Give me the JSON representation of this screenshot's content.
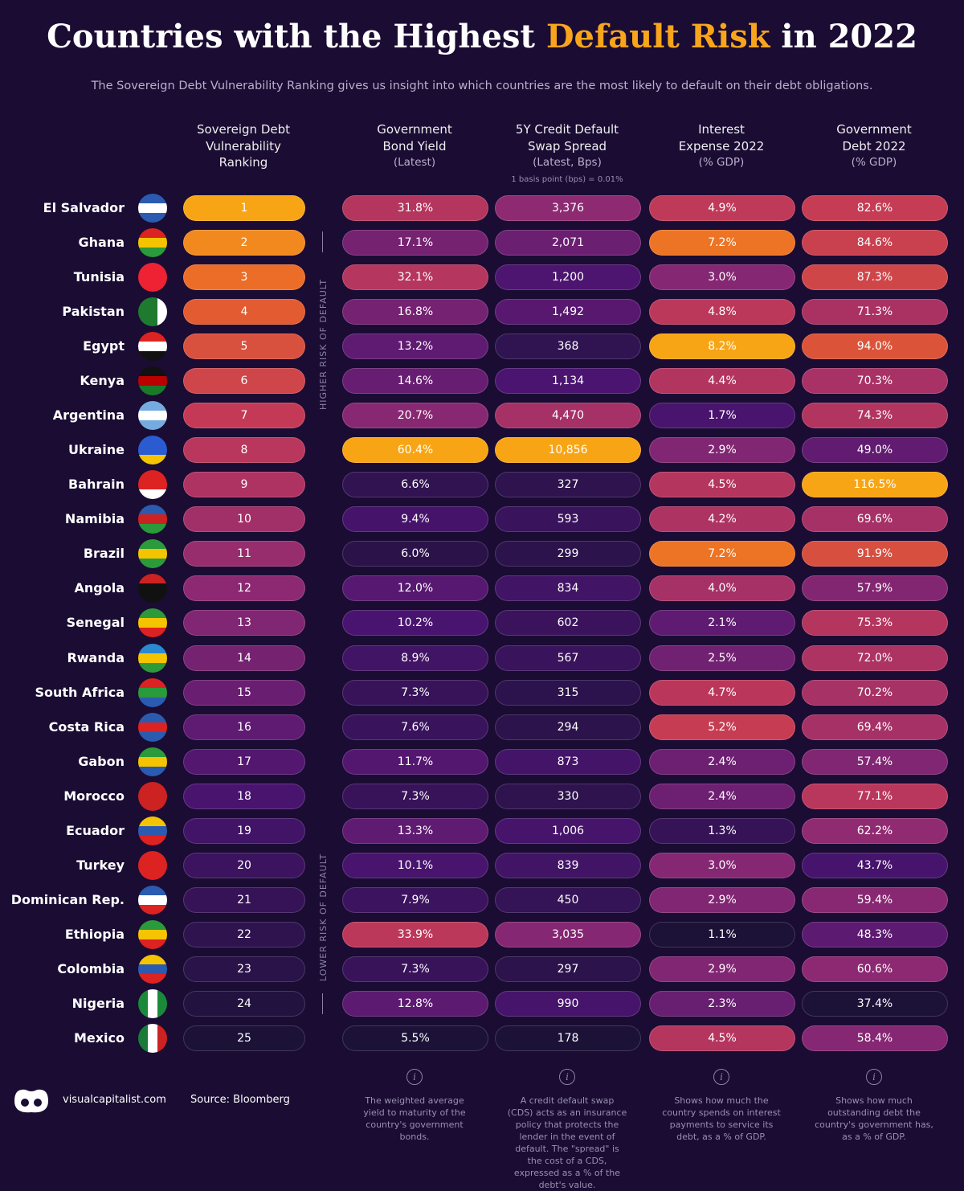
{
  "header": {
    "title_parts": [
      "Countries with the Highest ",
      "Default Risk",
      " in 2022"
    ],
    "subtitle": "The Sovereign Debt Vulnerability Ranking gives us insight into which countries are the most likely to default on their debt obligations."
  },
  "columns": [
    {
      "lines": [
        "Sovereign Debt",
        "Vulnerability",
        "Ranking"
      ]
    },
    {
      "lines": [
        "Government",
        "Bond Yield"
      ],
      "sub": "(Latest)"
    },
    {
      "lines": [
        "5Y Credit Default",
        "Swap Spread"
      ],
      "sub": "(Latest, Bps)",
      "note": "1 basis point (bps) = 0.01%"
    },
    {
      "lines": [
        "Interest",
        "Expense 2022"
      ],
      "sub": "(% GDP)"
    },
    {
      "lines": [
        "Government",
        "Debt 2022"
      ],
      "sub": "(% GDP)"
    }
  ],
  "side_labels": {
    "higher": "HIGHER RISK OF DEFAULT",
    "lower": "LOWER RISK OF DEFAULT"
  },
  "rows": [
    {
      "country": "El Salvador",
      "rank": 1,
      "yield": "31.8%",
      "cds": "3,376",
      "interest": "4.9%",
      "debt": "82.6%"
    },
    {
      "country": "Ghana",
      "rank": 2,
      "yield": "17.1%",
      "cds": "2,071",
      "interest": "7.2%",
      "debt": "84.6%"
    },
    {
      "country": "Tunisia",
      "rank": 3,
      "yield": "32.1%",
      "cds": "1,200",
      "interest": "3.0%",
      "debt": "87.3%"
    },
    {
      "country": "Pakistan",
      "rank": 4,
      "yield": "16.8%",
      "cds": "1,492",
      "interest": "4.8%",
      "debt": "71.3%"
    },
    {
      "country": "Egypt",
      "rank": 5,
      "yield": "13.2%",
      "cds": "368",
      "interest": "8.2%",
      "debt": "94.0%"
    },
    {
      "country": "Kenya",
      "rank": 6,
      "yield": "14.6%",
      "cds": "1,134",
      "interest": "4.4%",
      "debt": "70.3%"
    },
    {
      "country": "Argentina",
      "rank": 7,
      "yield": "20.7%",
      "cds": "4,470",
      "interest": "1.7%",
      "debt": "74.3%"
    },
    {
      "country": "Ukraine",
      "rank": 8,
      "yield": "60.4%",
      "cds": "10,856",
      "interest": "2.9%",
      "debt": "49.0%"
    },
    {
      "country": "Bahrain",
      "rank": 9,
      "yield": "6.6%",
      "cds": "327",
      "interest": "4.5%",
      "debt": "116.5%"
    },
    {
      "country": "Namibia",
      "rank": 10,
      "yield": "9.4%",
      "cds": "593",
      "interest": "4.2%",
      "debt": "69.6%"
    },
    {
      "country": "Brazil",
      "rank": 11,
      "yield": "6.0%",
      "cds": "299",
      "interest": "7.2%",
      "debt": "91.9%"
    },
    {
      "country": "Angola",
      "rank": 12,
      "yield": "12.0%",
      "cds": "834",
      "interest": "4.0%",
      "debt": "57.9%"
    },
    {
      "country": "Senegal",
      "rank": 13,
      "yield": "10.2%",
      "cds": "602",
      "interest": "2.1%",
      "debt": "75.3%"
    },
    {
      "country": "Rwanda",
      "rank": 14,
      "yield": "8.9%",
      "cds": "567",
      "interest": "2.5%",
      "debt": "72.0%"
    },
    {
      "country": "South Africa",
      "rank": 15,
      "yield": "7.3%",
      "cds": "315",
      "interest": "4.7%",
      "debt": "70.2%"
    },
    {
      "country": "Costa Rica",
      "rank": 16,
      "yield": "7.6%",
      "cds": "294",
      "interest": "5.2%",
      "debt": "69.4%"
    },
    {
      "country": "Gabon",
      "rank": 17,
      "yield": "11.7%",
      "cds": "873",
      "interest": "2.4%",
      "debt": "57.4%"
    },
    {
      "country": "Morocco",
      "rank": 18,
      "yield": "7.3%",
      "cds": "330",
      "interest": "2.4%",
      "debt": "77.1%"
    },
    {
      "country": "Ecuador",
      "rank": 19,
      "yield": "13.3%",
      "cds": "1,006",
      "interest": "1.3%",
      "debt": "62.2%"
    },
    {
      "country": "Turkey",
      "rank": 20,
      "yield": "10.1%",
      "cds": "839",
      "interest": "3.0%",
      "debt": "43.7%"
    },
    {
      "country": "Dominican Rep.",
      "rank": 21,
      "yield": "7.9%",
      "cds": "450",
      "interest": "2.9%",
      "debt": "59.4%"
    },
    {
      "country": "Ethiopia",
      "rank": 22,
      "yield": "33.9%",
      "cds": "3,035",
      "interest": "1.1%",
      "debt": "48.3%"
    },
    {
      "country": "Colombia",
      "rank": 23,
      "yield": "7.3%",
      "cds": "297",
      "interest": "2.9%",
      "debt": "60.6%"
    },
    {
      "country": "Nigeria",
      "rank": 24,
      "yield": "12.8%",
      "cds": "990",
      "interest": "2.3%",
      "debt": "37.4%"
    },
    {
      "country": "Mexico",
      "rank": 25,
      "yield": "5.5%",
      "cds": "178",
      "interest": "4.5%",
      "debt": "58.4%"
    }
  ],
  "footnotes": [
    "The weighted average yield to maturity of the country's government bonds.",
    "A credit default swap (CDS) acts as an insurance policy that protects the lender in the event of default. The \"spread\" is the cost of a CDS, expressed as a % of the debt's value.",
    "Shows how much the country spends on interest payments to service its debt, as a % of GDP.",
    "Shows how much outstanding debt the country's government has, as a % of GDP."
  ],
  "footer": {
    "brand": "visualcapitalist.com",
    "source": "Source: Bloomberg"
  }
}
